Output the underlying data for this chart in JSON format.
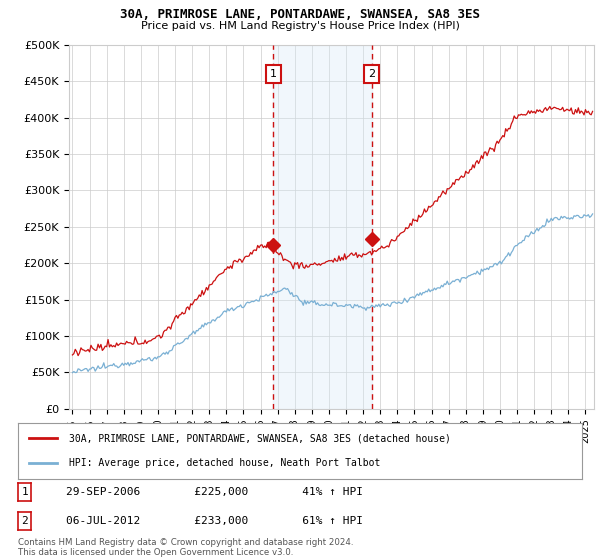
{
  "title": "30A, PRIMROSE LANE, PONTARDAWE, SWANSEA, SA8 3ES",
  "subtitle": "Price paid vs. HM Land Registry's House Price Index (HPI)",
  "ylabel_ticks": [
    "£0",
    "£50K",
    "£100K",
    "£150K",
    "£200K",
    "£250K",
    "£300K",
    "£350K",
    "£400K",
    "£450K",
    "£500K"
  ],
  "ytick_values": [
    0,
    50000,
    100000,
    150000,
    200000,
    250000,
    300000,
    350000,
    400000,
    450000,
    500000
  ],
  "ylim": [
    0,
    500000
  ],
  "xlim_start": 1994.8,
  "xlim_end": 2025.5,
  "sale1": {
    "date": 2006.75,
    "price": 225000,
    "label": "1",
    "text": "29-SEP-2006",
    "price_str": "£225,000",
    "hpi_str": "41% ↑ HPI"
  },
  "sale2": {
    "date": 2012.5,
    "price": 233000,
    "label": "2",
    "text": "06-JUL-2012",
    "price_str": "£233,000",
    "hpi_str": "61% ↑ HPI"
  },
  "red_line_label": "30A, PRIMROSE LANE, PONTARDAWE, SWANSEA, SA8 3ES (detached house)",
  "blue_line_label": "HPI: Average price, detached house, Neath Port Talbot",
  "footer": "Contains HM Land Registry data © Crown copyright and database right 2024.\nThis data is licensed under the Open Government Licence v3.0.",
  "red_color": "#cc1111",
  "blue_color": "#7ab0d4",
  "shade_color": "#d8eaf7",
  "grid_color": "#cccccc",
  "background_color": "#ffffff"
}
